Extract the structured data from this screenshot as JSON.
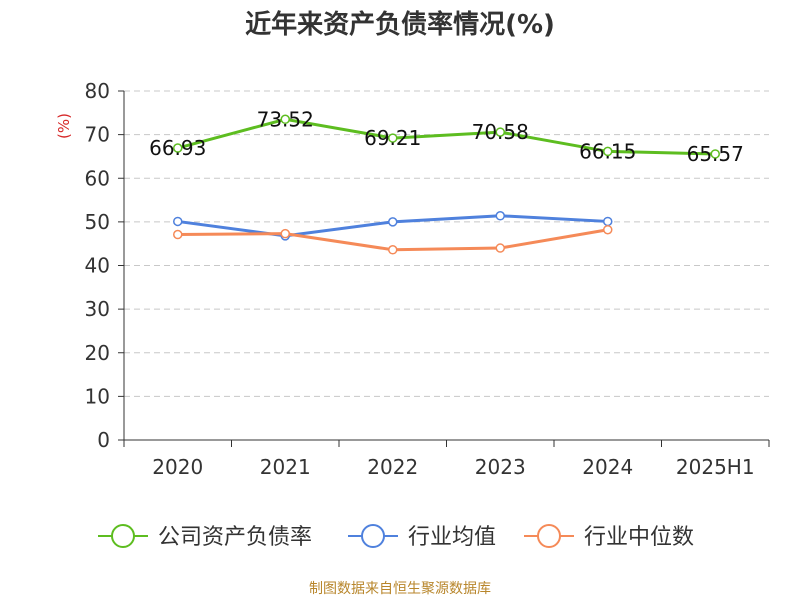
{
  "chart_data": {
    "type": "line",
    "title": "近年来资产负债率情况(%)",
    "ylabel": "(%)",
    "categories": [
      "2020",
      "2021",
      "2022",
      "2023",
      "2024",
      "2025H1"
    ],
    "ylim": [
      0,
      80
    ],
    "yticks": [
      0,
      10,
      20,
      30,
      40,
      50,
      60,
      70,
      80
    ],
    "grid": true,
    "legend_position": "bottom",
    "series": [
      {
        "name": "公司资产负债率",
        "color": "#5dbd20",
        "values": [
          66.93,
          73.52,
          69.21,
          70.58,
          66.15,
          65.57
        ],
        "labels": [
          "66.93",
          "73.52",
          "69.21",
          "70.58",
          "66.15",
          "65.57"
        ]
      },
      {
        "name": "行业均值",
        "color": "#4f81dd",
        "values": [
          50.1,
          46.8,
          50.0,
          51.4,
          50.1,
          null
        ]
      },
      {
        "name": "行业中位数",
        "color": "#f58a58",
        "values": [
          47.1,
          47.3,
          43.6,
          44.0,
          48.2,
          null
        ]
      }
    ]
  },
  "footer": "制图数据来自恒生聚源数据库"
}
